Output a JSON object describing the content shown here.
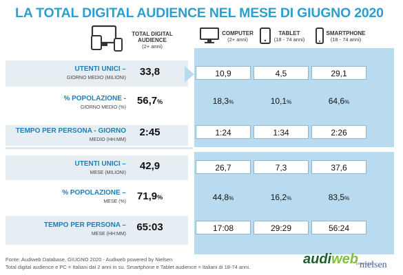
{
  "title": "LA TOTAL DIGITAL AUDIENCE NEL MESE DI GIUGNO 2020",
  "columns": {
    "total": {
      "label": "TOTAL DIGITAL AUDIENCE",
      "sub": "(2+ anni)"
    },
    "computer": {
      "label": "COMPUTER",
      "sub": "(2+ anni)"
    },
    "tablet": {
      "label": "TABLET",
      "sub": "(18 - 74 anni)"
    },
    "smartphone": {
      "label": "SMARTPHONE",
      "sub": "(18 - 74 anni)"
    }
  },
  "rows": [
    {
      "label": "UTENTI UNICI –",
      "sub": "GIORNO MEDIO (MILIONI)",
      "total": "33,8",
      "computer": "10,9",
      "tablet": "4,5",
      "smartphone": "29,1",
      "unit": ""
    },
    {
      "label": "% POPOLAZIONE -",
      "sub": "GIORNO MEDIO (%)",
      "total": "56,7",
      "computer": "18,3",
      "tablet": "10,1",
      "smartphone": "64,6",
      "unit": "%"
    },
    {
      "label": "TEMPO PER PERSONA - GIORNO",
      "sub": "MEDIO (HH:MM)",
      "total": "2:45",
      "computer": "1:24",
      "tablet": "1:34",
      "smartphone": "2:26",
      "unit": ""
    },
    {
      "label": "UTENTI UNICI –",
      "sub": "MESE (MILIONI)",
      "total": "42,9",
      "computer": "26,7",
      "tablet": "7,3",
      "smartphone": "37,6",
      "unit": ""
    },
    {
      "label": "% POPOLAZIONE –",
      "sub": "MESE (%)",
      "total": "71,9",
      "computer": "44,8",
      "tablet": "16,2",
      "smartphone": "83,5",
      "unit": "%"
    },
    {
      "label": "TEMPO PER PERSONA –",
      "sub": "MESE (HH:MM)",
      "total": "65:03",
      "computer": "17:08",
      "tablet": "29:29",
      "smartphone": "56:24",
      "unit": ""
    }
  ],
  "footer": {
    "line1": "Fonte: Audiweb Database, GIUGNO 2020 - Audiweb powered by Nielsen",
    "line2": "Total digital audience e PC = Italiani dai 2 anni in su. Smartphone e Tablet audience = Italiani di 18-74 anni."
  },
  "logo": {
    "audi": "audi",
    "web": "web",
    "powered": "powered by",
    "nielsen": "nielsen"
  },
  "icons": [
    "multi-device-icon",
    "computer-icon",
    "tablet-icon",
    "smartphone-icon"
  ],
  "colors": {
    "title": "#2a9fd0",
    "label": "#1b7fb8",
    "panel": "#b9dbf0",
    "row_band": "#e6edf3"
  },
  "chart_data": {
    "type": "table",
    "title": "LA TOTAL DIGITAL AUDIENCE NEL MESE DI GIUGNO 2020",
    "columns": [
      "TOTAL DIGITAL AUDIENCE",
      "COMPUTER",
      "TABLET",
      "SMARTPHONE"
    ],
    "rows": [
      {
        "metric": "UTENTI UNICI – GIORNO MEDIO (MILIONI)",
        "values": [
          33.8,
          10.9,
          4.5,
          29.1
        ]
      },
      {
        "metric": "% POPOLAZIONE - GIORNO MEDIO (%)",
        "values": [
          56.7,
          18.3,
          10.1,
          64.6
        ]
      },
      {
        "metric": "TEMPO PER PERSONA - GIORNO MEDIO (HH:MM)",
        "values": [
          "2:45",
          "1:24",
          "1:34",
          "2:26"
        ]
      },
      {
        "metric": "UTENTI UNICI – MESE (MILIONI)",
        "values": [
          42.9,
          26.7,
          7.3,
          37.6
        ]
      },
      {
        "metric": "% POPOLAZIONE – MESE (%)",
        "values": [
          71.9,
          44.8,
          16.2,
          83.5
        ]
      },
      {
        "metric": "TEMPO PER PERSONA – MESE (HH:MM)",
        "values": [
          "65:03",
          "17:08",
          "29:29",
          "56:24"
        ]
      }
    ]
  }
}
